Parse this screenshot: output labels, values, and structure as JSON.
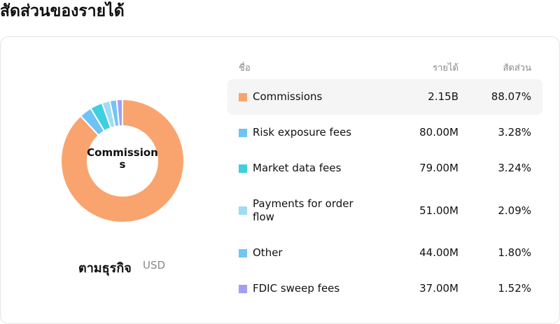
{
  "header": {
    "title": "สัดส่วนของรายได้"
  },
  "chart_data": {
    "type": "pie",
    "donut": true,
    "center_label": "Commissions",
    "caption": "ตามธุรกิจ",
    "unit": "USD",
    "categories": [
      "Commissions",
      "Risk exposure fees",
      "Market data fees",
      "Payments for order flow",
      "Other",
      "FDIC sweep fees"
    ],
    "values": [
      88.07,
      3.28,
      3.24,
      2.09,
      1.8,
      1.52
    ],
    "value_labels": [
      "88.07%",
      "3.28%",
      "3.24%",
      "2.09%",
      "1.80%",
      "1.52%"
    ],
    "colors": [
      "#f9a46e",
      "#6ec3f5",
      "#3ecfe0",
      "#9edcf7",
      "#72c5f5",
      "#a29ef5"
    ]
  },
  "table": {
    "columns": [
      "ชื่อ",
      "รายได้",
      "สัดส่วน"
    ],
    "revenue": [
      "2.15B",
      "80.00M",
      "79.00M",
      "51.00M",
      "44.00M",
      "37.00M"
    ],
    "highlighted_row": 0
  }
}
